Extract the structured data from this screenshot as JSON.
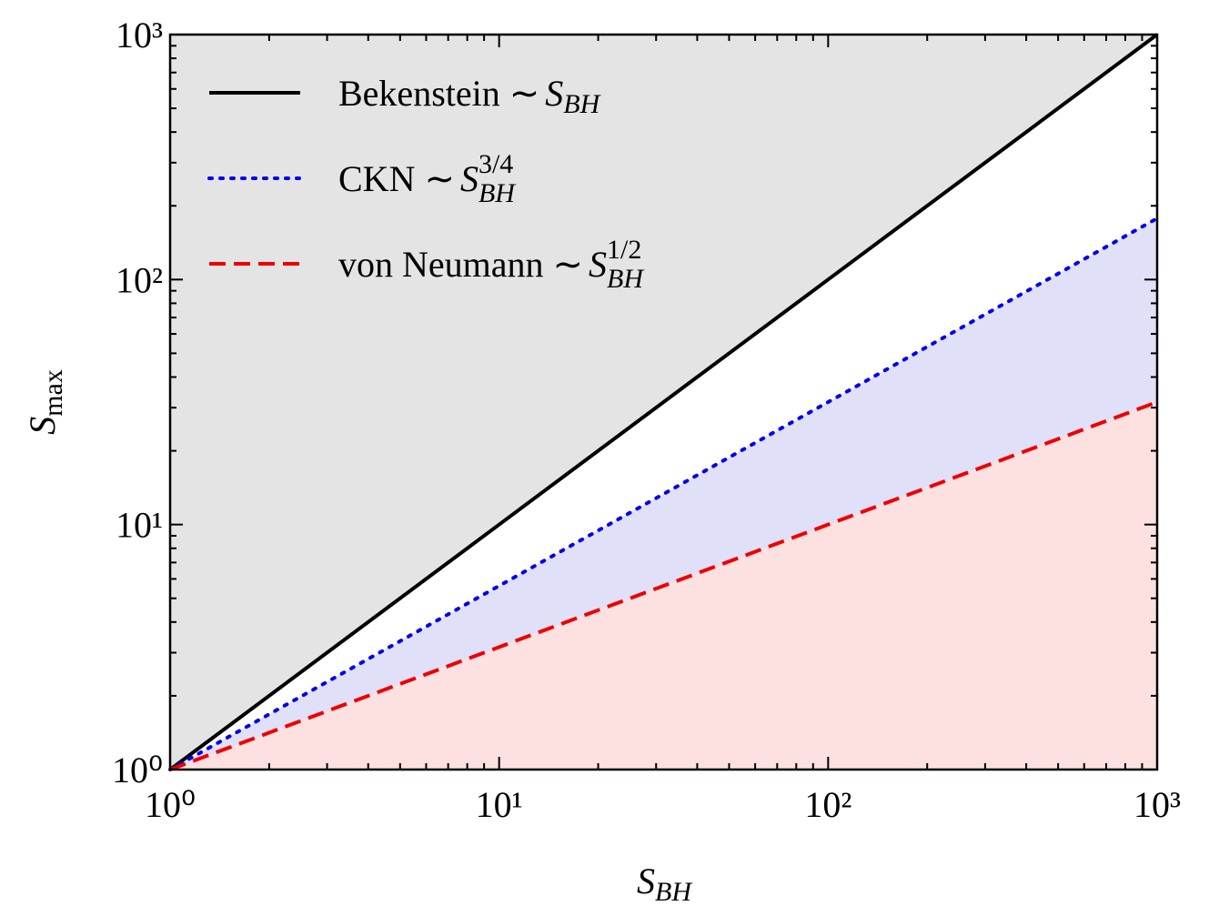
{
  "chart_data": {
    "type": "line",
    "x_label": {
      "symbol": "S",
      "subscript": "BH"
    },
    "y_label": {
      "symbol": "S",
      "subscript": "max"
    },
    "x": [
      1,
      10,
      100,
      1000
    ],
    "series": [
      {
        "name": "Bekenstein",
        "relation": "∼",
        "symbol": "S",
        "subscript": "BH",
        "color": "#000000",
        "dash": "solid",
        "fill": "#ffffff",
        "values": [
          1,
          10,
          100,
          1000
        ]
      },
      {
        "name": "CKN",
        "relation": "∼",
        "symbol": "S",
        "subscript": "BH",
        "exponent": "3/4",
        "color": "#0000ee",
        "dash": "dot",
        "fill": "#e0e0f8",
        "values": [
          1,
          5.623,
          31.62,
          177.8
        ]
      },
      {
        "name": "von Neumann",
        "relation": "∼",
        "symbol": "S",
        "subscript": "BH",
        "exponent": "1/2",
        "color": "#ee0000",
        "dash": "dash",
        "fill": "#fde0e0",
        "values": [
          1,
          3.162,
          10,
          31.62
        ]
      }
    ],
    "background": "#e4e4e4",
    "log_x": true,
    "log_y": true,
    "minor_ticks": true,
    "xlim": [
      1,
      1000
    ],
    "ylim": [
      1,
      1000
    ],
    "xticks": [
      {
        "value": 1,
        "label": "10⁰"
      },
      {
        "value": 10,
        "label": "10¹"
      },
      {
        "value": 100,
        "label": "10²"
      },
      {
        "value": 1000,
        "label": "10³"
      }
    ],
    "yticks": [
      {
        "value": 1,
        "label": "10⁰"
      },
      {
        "value": 10,
        "label": "10¹"
      },
      {
        "value": 100,
        "label": "10²"
      },
      {
        "value": 1000,
        "label": "10³"
      }
    ],
    "legend": "upper left"
  }
}
